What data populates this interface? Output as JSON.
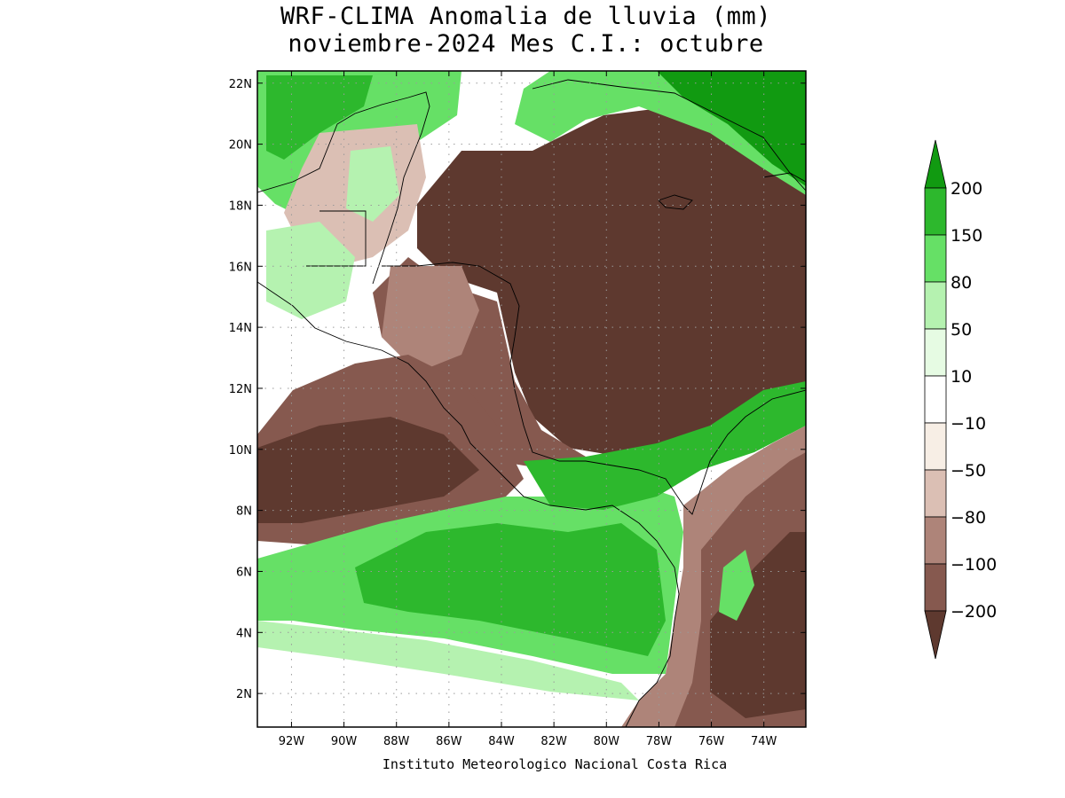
{
  "title": {
    "line1": "WRF-CLIMA Anomalia de lluvia (mm)",
    "line2": "noviembre-2024 Mes C.I.: octubre"
  },
  "credit": "Instituto Meteorologico Nacional Costa Rica",
  "map": {
    "lon_range": [
      -93.3,
      -72.4
    ],
    "lat_range": [
      0.9,
      22.4
    ],
    "lat_ticks": [
      "22N",
      "20N",
      "18N",
      "16N",
      "14N",
      "12N",
      "10N",
      "8N",
      "6N",
      "4N",
      "2N"
    ],
    "lon_ticks": [
      "92W",
      "90W",
      "88W",
      "86W",
      "84W",
      "82W",
      "80W",
      "78W",
      "76W",
      "74W"
    ],
    "grid": "dotted"
  },
  "colorbar": {
    "labels": [
      "200",
      "150",
      "80",
      "50",
      "10",
      "−10",
      "−50",
      "−80",
      "−100",
      "−200"
    ],
    "bins": [
      {
        "range": "> 200",
        "color": "#119a11"
      },
      {
        "range": "150 – 200",
        "color": "#2db82d"
      },
      {
        "range": "80 – 150",
        "color": "#66e066"
      },
      {
        "range": "50 – 80",
        "color": "#b5f2b0"
      },
      {
        "range": "10 – 50",
        "color": "#e6fbe3"
      },
      {
        "range": "-10 – 10",
        "color": "#ffffff"
      },
      {
        "range": "-50 – -10",
        "color": "#f7eee5"
      },
      {
        "range": "-80 – -50",
        "color": "#dbbfb4"
      },
      {
        "range": "-100 – -80",
        "color": "#ae8479"
      },
      {
        "range": "-200 – -100",
        "color": "#86594f"
      },
      {
        "range": "< -200",
        "color": "#5e392f"
      }
    ]
  },
  "colors": {
    "dry_extreme": "#5e392f",
    "dry_strong": "#86594f",
    "dry_moderate": "#ae8479",
    "dry_light": "#dbbfb4",
    "dry_slight": "#f7eee5",
    "wet_slight": "#e6fbe3",
    "wet_light": "#b5f2b0",
    "wet_moderate": "#66e066",
    "wet_strong": "#2db82d",
    "wet_extreme": "#119a11"
  }
}
